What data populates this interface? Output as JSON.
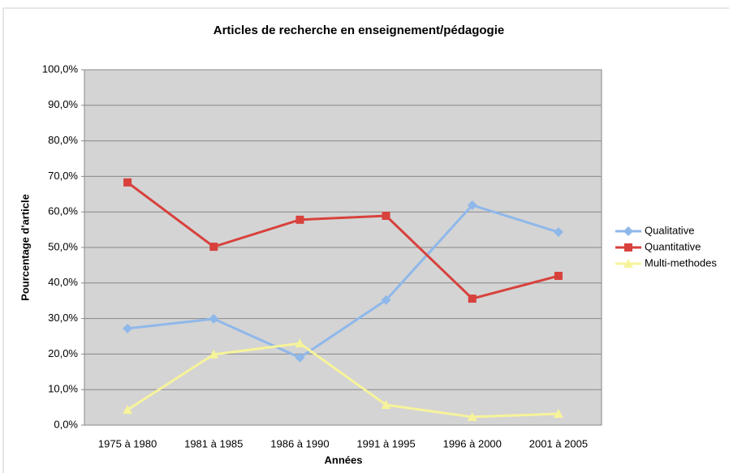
{
  "chart_data": {
    "type": "line",
    "title": "Articles de recherche en enseignement/pédagogie",
    "x_label": "Années",
    "y_label": "Pourcentage d'article",
    "categories": [
      "1975 à 1980",
      "1981 à 1985",
      "1986 à 1990",
      "1991 à 1995",
      "1996 à 2000",
      "2001 à 2005"
    ],
    "series": [
      {
        "name": "Qualitative",
        "color": "#8fb8ea",
        "marker": "diamond",
        "values": [
          27.2,
          29.9,
          19,
          35.2,
          61.9,
          54.3
        ]
      },
      {
        "name": "Quantitative",
        "color": "#d8413c",
        "marker": "square",
        "values": [
          68.3,
          50.2,
          57.8,
          58.9,
          35.6,
          42
        ]
      },
      {
        "name": "Multi-methodes",
        "color": "#f7f39a",
        "marker": "triangle",
        "values": [
          4.3,
          19.9,
          23,
          5.7,
          2.3,
          3.2
        ]
      }
    ],
    "ylim": [
      0,
      100
    ],
    "yticks": [
      {
        "value": 0,
        "label": "0,0%"
      },
      {
        "value": 10,
        "label": "10,0%"
      },
      {
        "value": 20,
        "label": "20,0%"
      },
      {
        "value": 30,
        "label": "30,0%"
      },
      {
        "value": 40,
        "label": "40,0%"
      },
      {
        "value": 50,
        "label": "50,0%"
      },
      {
        "value": 60,
        "label": "60,0%"
      },
      {
        "value": 70,
        "label": "70,0%"
      },
      {
        "value": 80,
        "label": "80,0%"
      },
      {
        "value": 90,
        "label": "90,0%"
      },
      {
        "value": 100,
        "label": "100,0%"
      }
    ],
    "grid": true,
    "legend": "right"
  }
}
